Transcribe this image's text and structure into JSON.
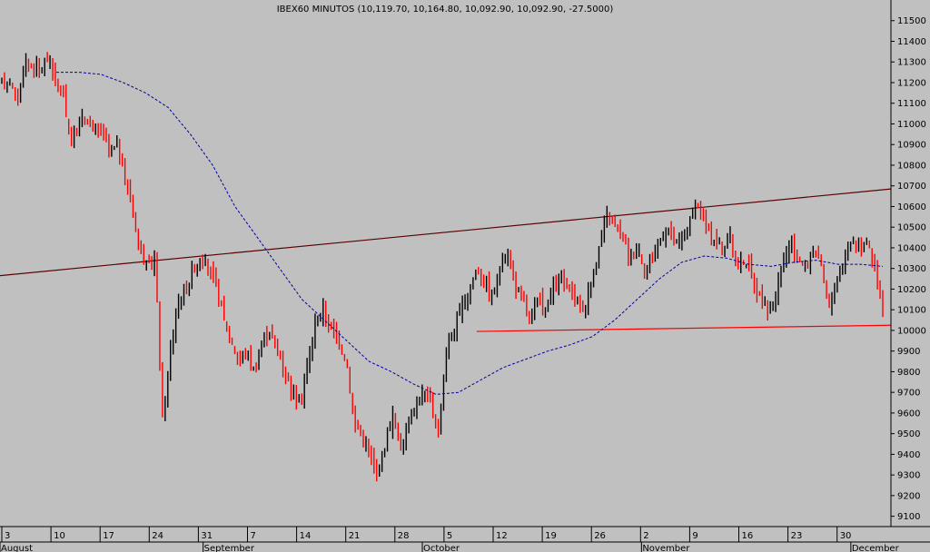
{
  "chart_data": {
    "type": "candlestick",
    "title": "IBEX60 MINUTOS (10,119.70, 10,164.80, 10,092.90, 10,092.90, -27.5000)",
    "y_axis": {
      "position": "right",
      "ylim": [
        9050,
        11600
      ],
      "ticks": [
        9100,
        9200,
        9300,
        9400,
        9500,
        9600,
        9700,
        9800,
        9900,
        10000,
        10100,
        10200,
        10300,
        10400,
        10500,
        10600,
        10700,
        10800,
        10900,
        11000,
        11100,
        11200,
        11300,
        11400,
        11500
      ]
    },
    "x_axis": {
      "day_ticks": [
        "3",
        "10",
        "17",
        "24",
        "31",
        "7",
        "14",
        "21",
        "28",
        "5",
        "12",
        "19",
        "26",
        "2",
        "9",
        "16",
        "23",
        "30"
      ],
      "month_labels": [
        "August",
        "September",
        "October",
        "November",
        "December"
      ]
    },
    "series": [
      {
        "kind": "price_path",
        "values": [
          11200,
          11220,
          11100,
          11300,
          11280,
          11260,
          11330,
          11200,
          11150,
          10900,
          11000,
          11050,
          10950,
          10980,
          10850,
          10900,
          10750,
          10600,
          10400,
          10300,
          10350,
          9550,
          9900,
          10150,
          10200,
          10300,
          10350,
          10300,
          10200,
          10050,
          9950,
          9850,
          9900,
          9800,
          9950,
          10000,
          9900,
          9800,
          9700,
          9650,
          9850,
          10050,
          10100,
          10000,
          9950,
          9850,
          9550,
          9500,
          9400,
          9300,
          9450,
          9600,
          9420,
          9550,
          9650,
          9700,
          9650,
          9500,
          9900,
          10000,
          10100,
          10200,
          10300,
          10250,
          10150,
          10300,
          10400,
          10200,
          10150,
          10050,
          10150,
          10100,
          10200,
          10250,
          10200,
          10150,
          10100,
          10250,
          10400,
          10550,
          10500,
          10450,
          10350,
          10400,
          10300,
          10350,
          10450,
          10500,
          10400,
          10450,
          10550,
          10600,
          10500,
          10450,
          10400,
          10450,
          10300,
          10350,
          10250,
          10150,
          10100,
          10150,
          10350,
          10400,
          10350,
          10300,
          10400,
          10300,
          10100,
          10250,
          10350,
          10450,
          10400,
          10450,
          10300,
          10100
        ]
      },
      {
        "kind": "moving_average",
        "style": "dashed",
        "color": "#0000a0",
        "values": [
          11250,
          11250,
          11240,
          11200,
          11150,
          11080,
          10950,
          10800,
          10600,
          10450,
          10300,
          10150,
          10050,
          9950,
          9850,
          9800,
          9740,
          9690,
          9700,
          9760,
          9820,
          9860,
          9900,
          9930,
          9970,
          10050,
          10150,
          10250,
          10330,
          10360,
          10350,
          10320,
          10310,
          10330,
          10340,
          10320,
          10320,
          10310
        ]
      }
    ],
    "trendlines": [
      {
        "name": "resistance",
        "color": "#5a0000",
        "from": {
          "x": 0,
          "y": 10265
        },
        "to": {
          "x": 1,
          "y": 10685
        }
      },
      {
        "name": "support",
        "color": "#ff0000",
        "from": {
          "x": 0.535,
          "y": 9995
        },
        "to": {
          "x": 1,
          "y": 10025
        }
      }
    ],
    "grid": false,
    "up_color": "#000000",
    "down_color": "#ff0000"
  }
}
